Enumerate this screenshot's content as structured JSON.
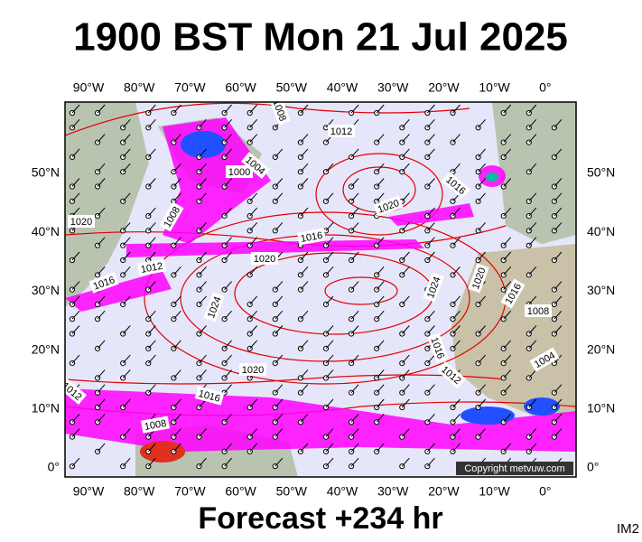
{
  "header": {
    "title": "1900 BST Mon 21 Jul 2025"
  },
  "map": {
    "longitude_labels": [
      "90°W",
      "80°W",
      "70°W",
      "60°W",
      "50°W",
      "40°W",
      "30°W",
      "20°W",
      "10°W",
      "0°"
    ],
    "latitude_labels": [
      "50°N",
      "40°N",
      "30°N",
      "20°N",
      "10°N",
      "0°"
    ],
    "isobar_labels": [
      "1012",
      "1000",
      "1004",
      "1008",
      "1016",
      "1020",
      "1020",
      "1016",
      "1020",
      "1008",
      "1012",
      "1016",
      "1024",
      "1024",
      "1020",
      "1016",
      "1008",
      "1020",
      "1016",
      "1012",
      "1004",
      "1012",
      "1016",
      "1008"
    ],
    "copyright": "Copyright metvuw.com"
  },
  "footer": {
    "forecast": "Forecast +234 hr",
    "code": "IM2"
  }
}
